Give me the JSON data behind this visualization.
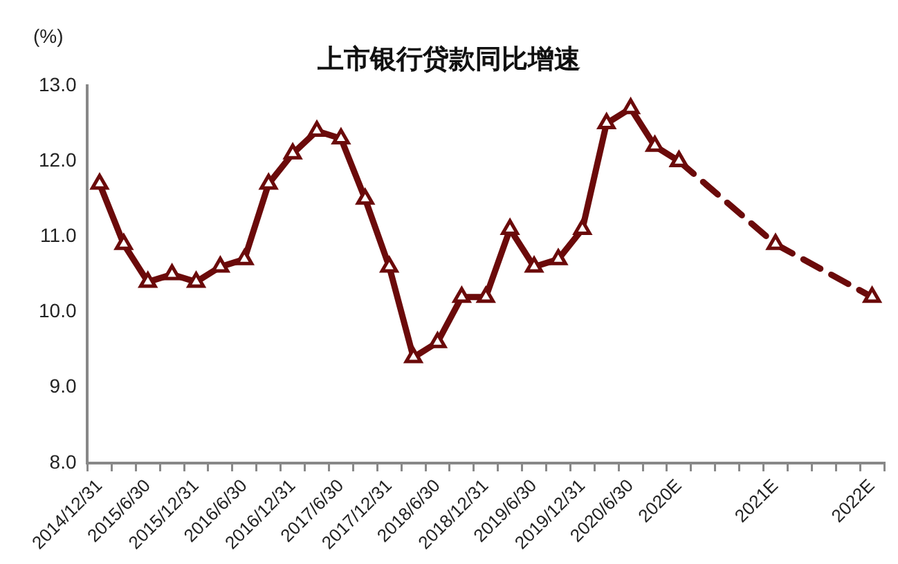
{
  "chart_data": {
    "type": "line",
    "title": "上市银行贷款同比增速",
    "ylabel": "(%)",
    "categories": [
      "2014/12/31",
      null,
      "2015/6/30",
      null,
      "2015/12/31",
      null,
      "2016/6/30",
      null,
      "2016/12/31",
      null,
      "2017/6/30",
      null,
      "2017/12/31",
      null,
      "2018/6/30",
      null,
      "2018/12/31",
      null,
      "2019/6/30",
      null,
      "2019/12/31",
      null,
      "2020/6/30",
      null,
      "2020E",
      null,
      null,
      null,
      "2021E",
      null,
      null,
      null,
      "2022E"
    ],
    "series": [
      {
        "color": "#6b0a0a",
        "line_style": "solid",
        "values": [
          11.7,
          10.9,
          10.4,
          10.5,
          10.4,
          10.6,
          10.7,
          11.7,
          12.1,
          12.4,
          12.3,
          11.5,
          10.6,
          9.4,
          9.6,
          10.2,
          10.2,
          11.1,
          10.6,
          10.7,
          11.1,
          12.5,
          12.7,
          12.2,
          12.0,
          null,
          null,
          null,
          null,
          null,
          null,
          null,
          null
        ]
      },
      {
        "color": "#6b0a0a",
        "line_style": "dashed",
        "values": [
          null,
          null,
          null,
          null,
          null,
          null,
          null,
          null,
          null,
          null,
          null,
          null,
          null,
          null,
          null,
          null,
          null,
          null,
          null,
          null,
          null,
          null,
          null,
          null,
          12.0,
          null,
          null,
          null,
          10.9,
          null,
          null,
          null,
          10.2
        ]
      }
    ],
    "ylim": [
      8,
      13
    ],
    "yticks": [
      {
        "value": 8,
        "label": "8.0"
      },
      {
        "value": 9,
        "label": "9.0"
      },
      {
        "value": 10,
        "label": "10.0"
      },
      {
        "value": 11,
        "label": "11.0"
      },
      {
        "value": 12,
        "label": "12.0"
      },
      {
        "value": 13,
        "label": "13.0"
      }
    ],
    "grid": false,
    "legend": false,
    "marker": "triangle"
  }
}
